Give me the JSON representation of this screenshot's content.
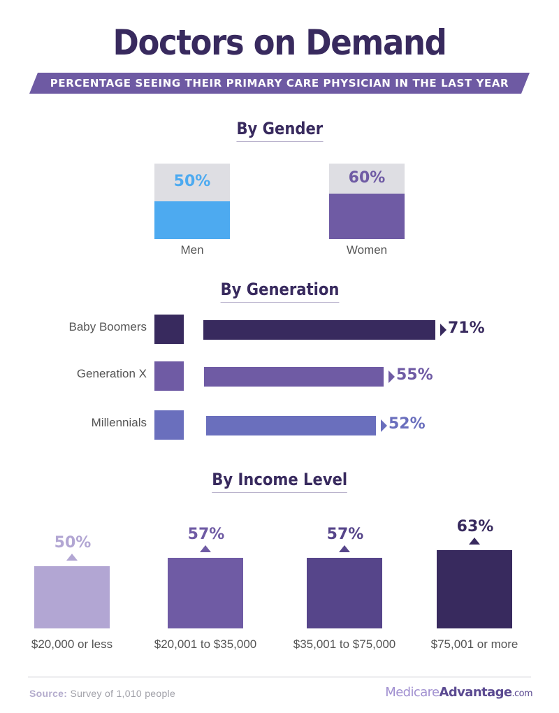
{
  "title": "Doctors on Demand",
  "subtitle": "PERCENTAGE SEEING THEIR PRIMARY CARE PHYSICIAN IN THE LAST YEAR",
  "chart_data": [
    {
      "type": "bar",
      "title": "By Gender",
      "categories": [
        "Men",
        "Women"
      ],
      "values": [
        50,
        60
      ],
      "value_labels": [
        "50%",
        "60%"
      ],
      "ylim": [
        0,
        100
      ],
      "colors": [
        "#4daaf0",
        "#6f5ba4"
      ],
      "background_color": "#dedee3"
    },
    {
      "type": "bar",
      "title": "By Generation",
      "orientation": "horizontal",
      "categories": [
        "Baby Boomers",
        "Generation X",
        "Millennials"
      ],
      "values": [
        71,
        55,
        52
      ],
      "value_labels": [
        "71%",
        "55%",
        "52%"
      ],
      "colors": [
        "#382a5e",
        "#6f5ba4",
        "#6a6fbd"
      ]
    },
    {
      "type": "bar",
      "title": "By Income Level",
      "categories": [
        "$20,000 or less",
        "$20,001 to $35,000",
        "$35,001 to $75,000",
        "$75,001 or more"
      ],
      "values": [
        50,
        57,
        57,
        63
      ],
      "value_labels": [
        "50%",
        "57%",
        "57%",
        "63%"
      ],
      "colors": [
        "#b2a6d3",
        "#6f5ba4",
        "#56458a",
        "#382a5e"
      ]
    }
  ],
  "footer": {
    "source_prefix": "Source:",
    "source_text": "Survey of 1,010 people",
    "brand_part1": "Medicare",
    "brand_part2": "Advantage",
    "brand_part3": ".com"
  }
}
